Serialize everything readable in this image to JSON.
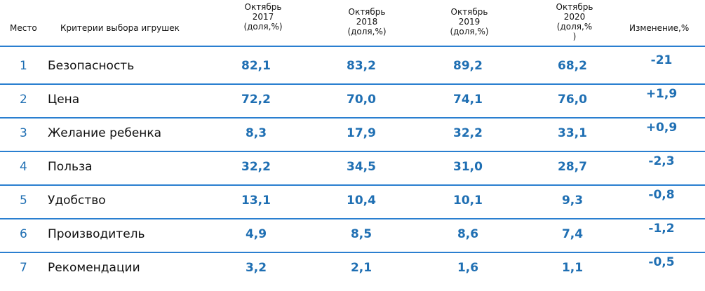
{
  "header": {
    "place": "Место",
    "criteria": "Критерии выбора игрушек",
    "cols": [
      {
        "l1": "Октябрь",
        "l2": "2017",
        "l3": "(доля,%)"
      },
      {
        "l1": "Октябрь",
        "l2": "2018",
        "l3": "(доля,%)"
      },
      {
        "l1": "Октябрь",
        "l2": "2019",
        "l3": "(доля,%)"
      },
      {
        "l1": "Октябрь",
        "l2": "2020",
        "l3": "(доля,%",
        "l4": ")"
      }
    ],
    "change": "Изменение,%"
  },
  "rows": [
    {
      "place": "1",
      "criteria": "Безопасность",
      "v2017": "82,1",
      "v2018": "83,2",
      "v2019": "89,2",
      "v2020": "68,2",
      "change": "-21"
    },
    {
      "place": "2",
      "criteria": "Цена",
      "v2017": "72,2",
      "v2018": "70,0",
      "v2019": "74,1",
      "v2020": "76,0",
      "change": "+1,9"
    },
    {
      "place": "3",
      "criteria": "Желание ребенка",
      "v2017": "8,3",
      "v2018": "17,9",
      "v2019": "32,2",
      "v2020": "33,1",
      "change": "+0,9"
    },
    {
      "place": "4",
      "criteria": "Польза",
      "v2017": "32,2",
      "v2018": "34,5",
      "v2019": "31,0",
      "v2020": "28,7",
      "change": "-2,3"
    },
    {
      "place": "5",
      "criteria": "Удобство",
      "v2017": "13,1",
      "v2018": "10,4",
      "v2019": "10,1",
      "v2020": "9,3",
      "change": "-0,8"
    },
    {
      "place": "6",
      "criteria": "Производитель",
      "v2017": "4,9",
      "v2018": "8,5",
      "v2019": "8,6",
      "v2020": "7,4",
      "change": "-1,2"
    },
    {
      "place": "7",
      "criteria": "Рекомендации",
      "v2017": "3,2",
      "v2018": "2,1",
      "v2019": "1,6",
      "v2020": "1,1",
      "change": "-0,5"
    }
  ],
  "colors": {
    "accent": "#1f6fb3",
    "rule": "#2a7fd0"
  }
}
